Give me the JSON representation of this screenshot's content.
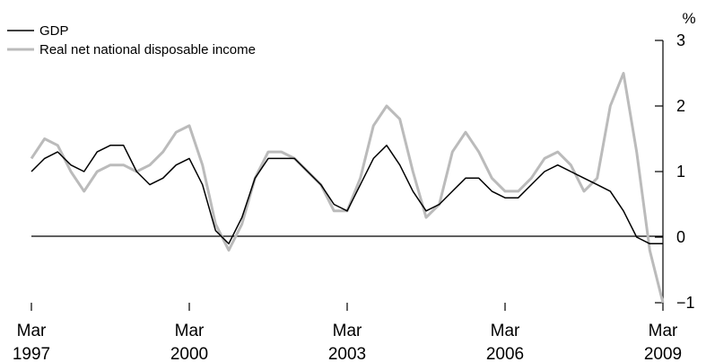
{
  "chart_data": {
    "type": "line",
    "title": "",
    "xlabel": "",
    "ylabel": "%",
    "ylim": [
      -1,
      3
    ],
    "xlim": [
      "1997-03",
      "2009-03"
    ],
    "legend_position": "top-left",
    "grid": false,
    "y_ticks": [
      "3",
      "2",
      "1",
      "0",
      "−1"
    ],
    "x_ticks": [
      {
        "month": "Mar",
        "year": "1997"
      },
      {
        "month": "Mar",
        "year": "2000"
      },
      {
        "month": "Mar",
        "year": "2003"
      },
      {
        "month": "Mar",
        "year": "2006"
      },
      {
        "month": "Mar",
        "year": "2009"
      }
    ],
    "x": [
      "1997-03",
      "1997-06",
      "1997-09",
      "1997-12",
      "1998-03",
      "1998-06",
      "1998-09",
      "1998-12",
      "1999-03",
      "1999-06",
      "1999-09",
      "1999-12",
      "2000-03",
      "2000-06",
      "2000-09",
      "2000-12",
      "2001-03",
      "2001-06",
      "2001-09",
      "2001-12",
      "2002-03",
      "2002-06",
      "2002-09",
      "2002-12",
      "2003-03",
      "2003-06",
      "2003-09",
      "2003-12",
      "2004-03",
      "2004-06",
      "2004-09",
      "2004-12",
      "2005-03",
      "2005-06",
      "2005-09",
      "2005-12",
      "2006-03",
      "2006-06",
      "2006-09",
      "2006-12",
      "2007-03",
      "2007-06",
      "2007-09",
      "2007-12",
      "2008-03",
      "2008-06",
      "2008-09",
      "2008-12",
      "2009-03"
    ],
    "series": [
      {
        "name": "GDP",
        "color": "#000000",
        "values": [
          1.0,
          1.2,
          1.3,
          1.1,
          1.0,
          1.3,
          1.4,
          1.4,
          1.0,
          0.8,
          0.9,
          1.1,
          1.2,
          0.8,
          0.1,
          -0.1,
          0.3,
          0.9,
          1.2,
          1.2,
          1.2,
          1.0,
          0.8,
          0.5,
          0.4,
          0.8,
          1.2,
          1.4,
          1.1,
          0.7,
          0.4,
          0.5,
          0.7,
          0.9,
          0.9,
          0.7,
          0.6,
          0.6,
          0.8,
          1.0,
          1.1,
          1.0,
          0.9,
          0.8,
          0.7,
          0.4,
          0.0,
          -0.1,
          -0.1
        ]
      },
      {
        "name": "Real net national disposable income",
        "color": "#bbbbbb",
        "values": [
          1.2,
          1.5,
          1.4,
          1.0,
          0.7,
          1.0,
          1.1,
          1.1,
          1.0,
          1.1,
          1.3,
          1.6,
          1.7,
          1.1,
          0.2,
          -0.2,
          0.2,
          0.9,
          1.3,
          1.3,
          1.2,
          1.0,
          0.8,
          0.4,
          0.4,
          0.9,
          1.7,
          2.0,
          1.8,
          1.0,
          0.3,
          0.5,
          1.3,
          1.6,
          1.3,
          0.9,
          0.7,
          0.7,
          0.9,
          1.2,
          1.3,
          1.1,
          0.7,
          0.9,
          2.0,
          2.5,
          1.3,
          -0.2,
          -1.0
        ]
      }
    ]
  }
}
